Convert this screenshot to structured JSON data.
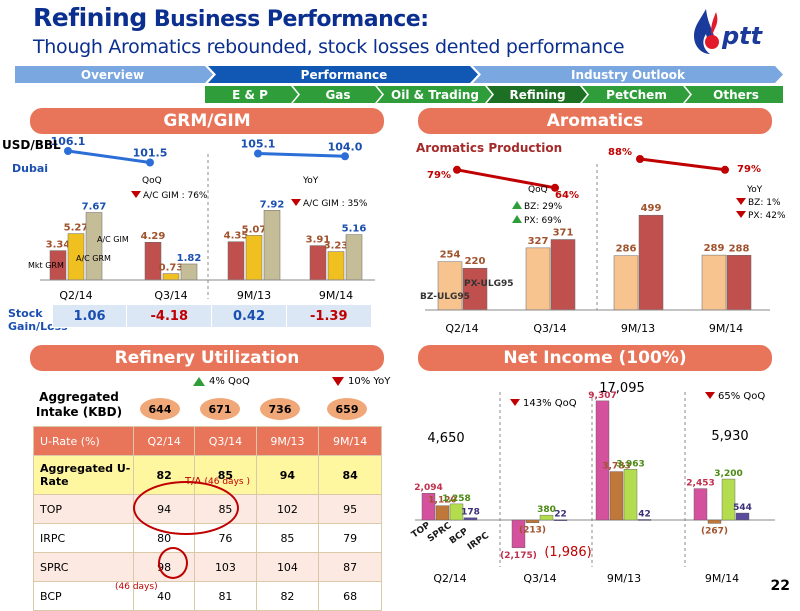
{
  "header": {
    "title_bold": "Refining",
    "title_rest": " Business Performance:",
    "subtitle": "Though Aromatics rebounded, stock losses dented performance",
    "logo_text": "ptt",
    "page_number": "22"
  },
  "nav": {
    "top": [
      "Overview",
      "Performance",
      "Industry Outlook"
    ],
    "sub": [
      "E & P",
      "Gas",
      "Oil & Trading",
      "Refining",
      "PetChem",
      "Others"
    ],
    "active_sub": "Refining"
  },
  "grm": {
    "title": "GRM/GIM",
    "unit": "USD/BBL",
    "dubai_label": "Dubai",
    "dubai_values": [
      "106.1",
      "101.5",
      "105.1",
      "104.0"
    ],
    "qoq_label": "QoQ",
    "yoy_label": "YoY",
    "qoq_note": "A/C GIM : 76%",
    "yoy_note": "A/C GIM : 35%",
    "legend": {
      "ac_gim": "A/C GIM",
      "ac_grm": "A/C GRM",
      "mkt_grm": "Mkt GRM"
    },
    "stock_label": "Stock Gain/Loss",
    "stock_values": [
      "1.06",
      "-4.18",
      "0.42",
      "-1.39"
    ]
  },
  "aromatics": {
    "title": "Aromatics",
    "subtitle": "Aromatics Production",
    "util": [
      "79%",
      "64%",
      "88%",
      "79%"
    ],
    "qoq_label": "QoQ",
    "yoy_label": "YoY",
    "qoq_bz": "BZ: 29%",
    "qoq_px": "PX: 69%",
    "yoy_bz": "BZ: 1%",
    "yoy_px": "PX: 42%",
    "bz_label": "BZ-ULG95",
    "px_label": "PX-ULG95"
  },
  "refinery": {
    "title": "Refinery Utilization",
    "qoq_badge": "4% QoQ",
    "yoy_badge": "10% YoY",
    "intake_label": "Aggregated Intake (KBD)",
    "intake": [
      "644",
      "671",
      "736",
      "659"
    ],
    "table_headers": [
      "U-Rate (%)",
      "Q2/14",
      "Q3/14",
      "9M/13",
      "9M/14"
    ],
    "rows": [
      {
        "name": "Aggregated U-Rate",
        "values": [
          "82",
          "85",
          "94",
          "84"
        ]
      },
      {
        "name": "TOP",
        "values": [
          "94",
          "85",
          "102",
          "95"
        ]
      },
      {
        "name": "IRPC",
        "values": [
          "80",
          "76",
          "85",
          "79"
        ]
      },
      {
        "name": "SPRC",
        "values": [
          "98",
          "103",
          "104",
          "87"
        ]
      },
      {
        "name": "BCP",
        "values": [
          "40",
          "81",
          "82",
          "68"
        ]
      }
    ],
    "ta_note": "T/A",
    "ta_days": "(46 days )",
    "bcp_days": "(46 days)"
  },
  "net_income": {
    "title": "Net Income (100%)",
    "qoq_badge": "143% QoQ",
    "yoy_badge": "65% QoQ",
    "totals": [
      "4,650",
      "(1,986)",
      "17,095",
      "5,930"
    ],
    "company_labels": [
      "TOP",
      "SPRC",
      "BCP",
      "IRPC"
    ]
  },
  "chart_data": [
    {
      "type": "bar",
      "title": "GRM/GIM",
      "ylabel": "USD/BBL",
      "categories": [
        "Q2/14",
        "Q3/14",
        "9M/13",
        "9M/14"
      ],
      "series": [
        {
          "name": "Mkt GRM",
          "values": [
            3.34,
            4.29,
            4.35,
            3.91
          ]
        },
        {
          "name": "A/C GRM",
          "values": [
            5.27,
            0.73,
            5.07,
            3.23
          ]
        },
        {
          "name": "A/C GIM",
          "values": [
            7.67,
            1.82,
            7.92,
            5.16
          ]
        }
      ],
      "line": {
        "name": "Dubai",
        "values": [
          106.1,
          101.5,
          105.1,
          104.0
        ]
      },
      "colors": [
        "#c0504d",
        "#f0c020",
        "#c4bd97"
      ]
    },
    {
      "type": "bar",
      "title": "Aromatics",
      "categories": [
        "Q2/14",
        "Q3/14",
        "9M/13",
        "9M/14"
      ],
      "series": [
        {
          "name": "BZ-ULG95",
          "values": [
            254,
            327,
            286,
            289
          ]
        },
        {
          "name": "PX-ULG95",
          "values": [
            220,
            371,
            499,
            288
          ]
        }
      ],
      "line": {
        "name": "Aromatics Production",
        "values": [
          79,
          64,
          88,
          79
        ]
      },
      "colors": [
        "#f7c48f",
        "#c0504d"
      ]
    },
    {
      "type": "bar",
      "title": "Net Income (100%)",
      "categories": [
        "Q2/14",
        "Q3/14",
        "9M/13",
        "9M/14"
      ],
      "series": [
        {
          "name": "TOP",
          "values": [
            2094,
            -2175,
            9307,
            2453
          ]
        },
        {
          "name": "SPRC",
          "values": [
            1120,
            -213,
            3783,
            -267
          ]
        },
        {
          "name": "BCP",
          "values": [
            1258,
            380,
            3963,
            3200
          ]
        },
        {
          "name": "IRPC",
          "values": [
            178,
            22,
            42,
            544
          ]
        }
      ],
      "totals": [
        4650,
        -1986,
        17095,
        5930
      ],
      "colors": [
        "#d4529d",
        "#c0773a",
        "#b3dd4f",
        "#5b4b9a"
      ]
    }
  ]
}
